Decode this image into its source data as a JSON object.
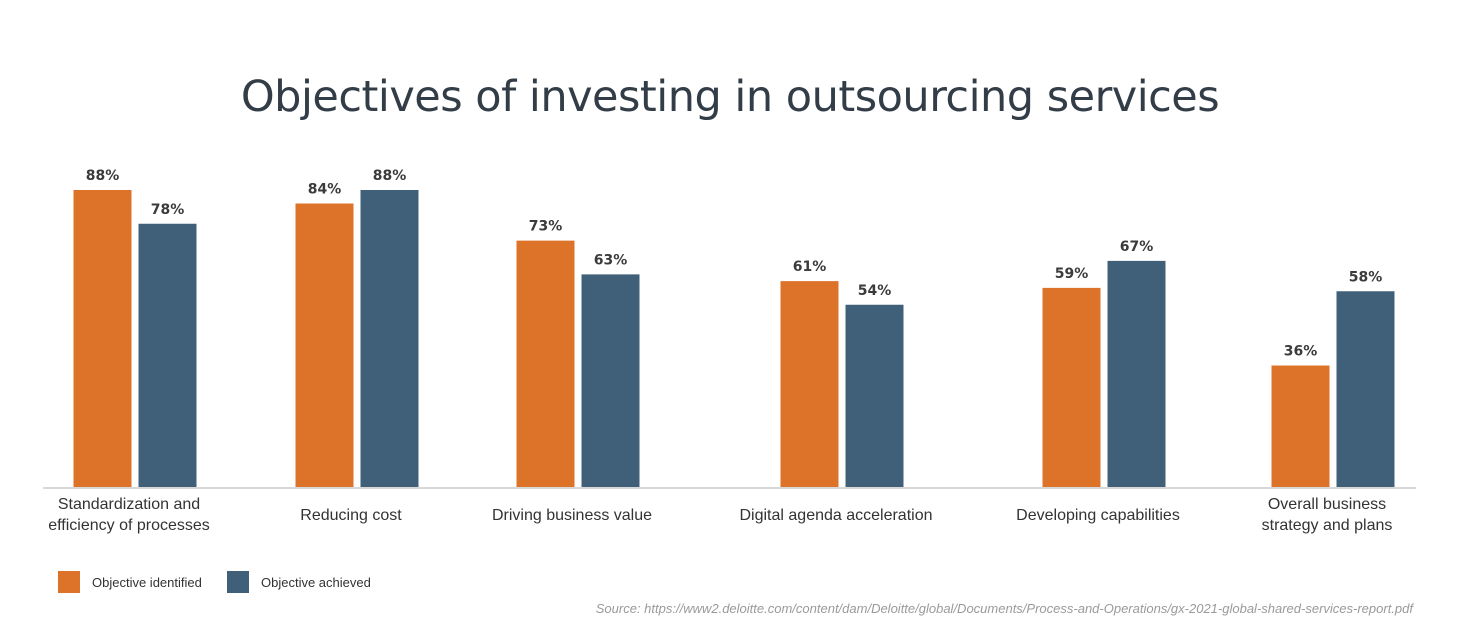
{
  "chart_data": {
    "type": "bar",
    "title": "Objectives of investing in outsourcing services",
    "categories": [
      [
        "Standardization and",
        "efficiency of processes"
      ],
      [
        "Reducing cost"
      ],
      [
        "Driving business value"
      ],
      [
        "Digital agenda acceleration"
      ],
      [
        "Developing capabilities"
      ],
      [
        "Overall business",
        "strategy and plans"
      ]
    ],
    "series": [
      {
        "name": "Objective identified",
        "color": "#dc7329",
        "values": [
          88,
          84,
          73,
          61,
          59,
          36
        ]
      },
      {
        "name": "Objective achieved",
        "color": "#40607a",
        "values": [
          78,
          88,
          63,
          54,
          67,
          58
        ]
      }
    ],
    "value_suffix": "%",
    "ylim": [
      0,
      100
    ],
    "grid": false,
    "legend_position": "bottom-left",
    "source": "Source: https://www2.deloitte.com/content/dam/Deloitte/global/Documents/Process-and-Operations/gx-2021-global-shared-services-report.pdf"
  }
}
